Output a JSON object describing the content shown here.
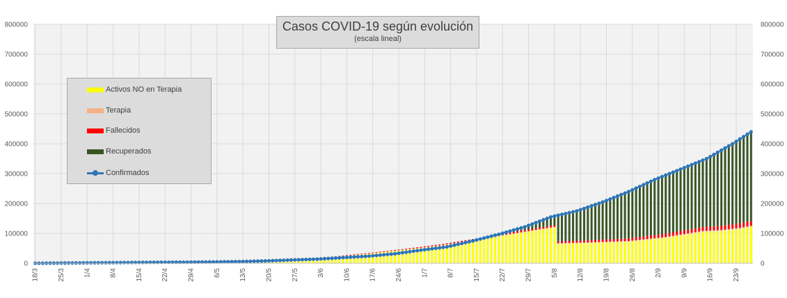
{
  "chart_data": {
    "type": "bar",
    "title": "Casos COVID-19 según evolución",
    "subtitle": "(escala lineal)",
    "xlabel": "",
    "ylabel": "",
    "ylim": [
      0,
      800000
    ],
    "y_ticks": [
      "0",
      "100000",
      "200000",
      "300000",
      "400000",
      "500000",
      "600000",
      "700000",
      "800000"
    ],
    "y_ticks_right": [
      "0",
      "100000",
      "200000",
      "300000",
      "400000",
      "500000",
      "600000",
      "700000",
      "800000"
    ],
    "grid": true,
    "legend_position": "left",
    "start_date": "2020-03-18",
    "num_days": 194,
    "x_tick_labels": [
      "18/3",
      "25/3",
      "1/4",
      "8/4",
      "15/4",
      "22/4",
      "29/4",
      "6/5",
      "13/5",
      "20/5",
      "27/5",
      "3/6",
      "10/6",
      "17/6",
      "24/6",
      "1/7",
      "8/7",
      "15/7",
      "22/7",
      "29/7",
      "5/8",
      "12/8",
      "19/8",
      "26/8",
      "2/9",
      "9/9",
      "16/9",
      "23/9"
    ],
    "x_tick_step_days": 7,
    "bar_every_days": 1,
    "stacking": "bars stacked: Activos NO en Terapia + Terapia + Fallecidos + Recuperados = Confirmados",
    "series": [
      {
        "name": "Activos NO en Terapia",
        "style": "bar",
        "color": "#ffff00",
        "keyframes": [
          [
            0,
            100
          ],
          [
            30,
            1500
          ],
          [
            50,
            4000
          ],
          [
            60,
            7000
          ],
          [
            70,
            12000
          ],
          [
            80,
            20000
          ],
          [
            90,
            32000
          ],
          [
            100,
            45000
          ],
          [
            110,
            60000
          ],
          [
            120,
            80000
          ],
          [
            130,
            100000
          ],
          [
            140,
            120000
          ],
          [
            141,
            65000
          ],
          [
            150,
            68000
          ],
          [
            160,
            72000
          ],
          [
            170,
            85000
          ],
          [
            180,
            105000
          ],
          [
            185,
            108000
          ],
          [
            190,
            115000
          ],
          [
            193,
            122000
          ]
        ]
      },
      {
        "name": "Terapia",
        "style": "bar",
        "color": "#f4b183",
        "keyframes": [
          [
            0,
            10
          ],
          [
            60,
            300
          ],
          [
            90,
            700
          ],
          [
            120,
            1500
          ],
          [
            150,
            2200
          ],
          [
            170,
            3000
          ],
          [
            193,
            3500
          ]
        ]
      },
      {
        "name": "Fallecidos",
        "style": "bar",
        "color": "#ff0000",
        "keyframes": [
          [
            0,
            5
          ],
          [
            30,
            300
          ],
          [
            60,
            800
          ],
          [
            90,
            2000
          ],
          [
            120,
            4000
          ],
          [
            150,
            7000
          ],
          [
            170,
            11000
          ],
          [
            193,
            16000
          ]
        ]
      },
      {
        "name": "Recuperados",
        "style": "bar",
        "color": "#375623",
        "derived_from": "Confirmados minus the other three"
      },
      {
        "name": "Confirmados",
        "style": "line",
        "color": "#2e75b6",
        "keyframes": [
          [
            0,
            100
          ],
          [
            13,
            1400
          ],
          [
            20,
            2000
          ],
          [
            27,
            2700
          ],
          [
            34,
            3300
          ],
          [
            41,
            3600
          ],
          [
            48,
            4400
          ],
          [
            55,
            5700
          ],
          [
            62,
            7800
          ],
          [
            69,
            11000
          ],
          [
            76,
            14000
          ],
          [
            83,
            19000
          ],
          [
            90,
            24000
          ],
          [
            97,
            32000
          ],
          [
            104,
            44000
          ],
          [
            111,
            55000
          ],
          [
            118,
            75000
          ],
          [
            125,
            97000
          ],
          [
            132,
            122000
          ],
          [
            139,
            155000
          ],
          [
            146,
            175000
          ],
          [
            153,
            205000
          ],
          [
            160,
            240000
          ],
          [
            167,
            280000
          ],
          [
            174,
            315000
          ],
          [
            181,
            350000
          ],
          [
            188,
            400000
          ],
          [
            193,
            440000
          ]
        ]
      }
    ]
  }
}
